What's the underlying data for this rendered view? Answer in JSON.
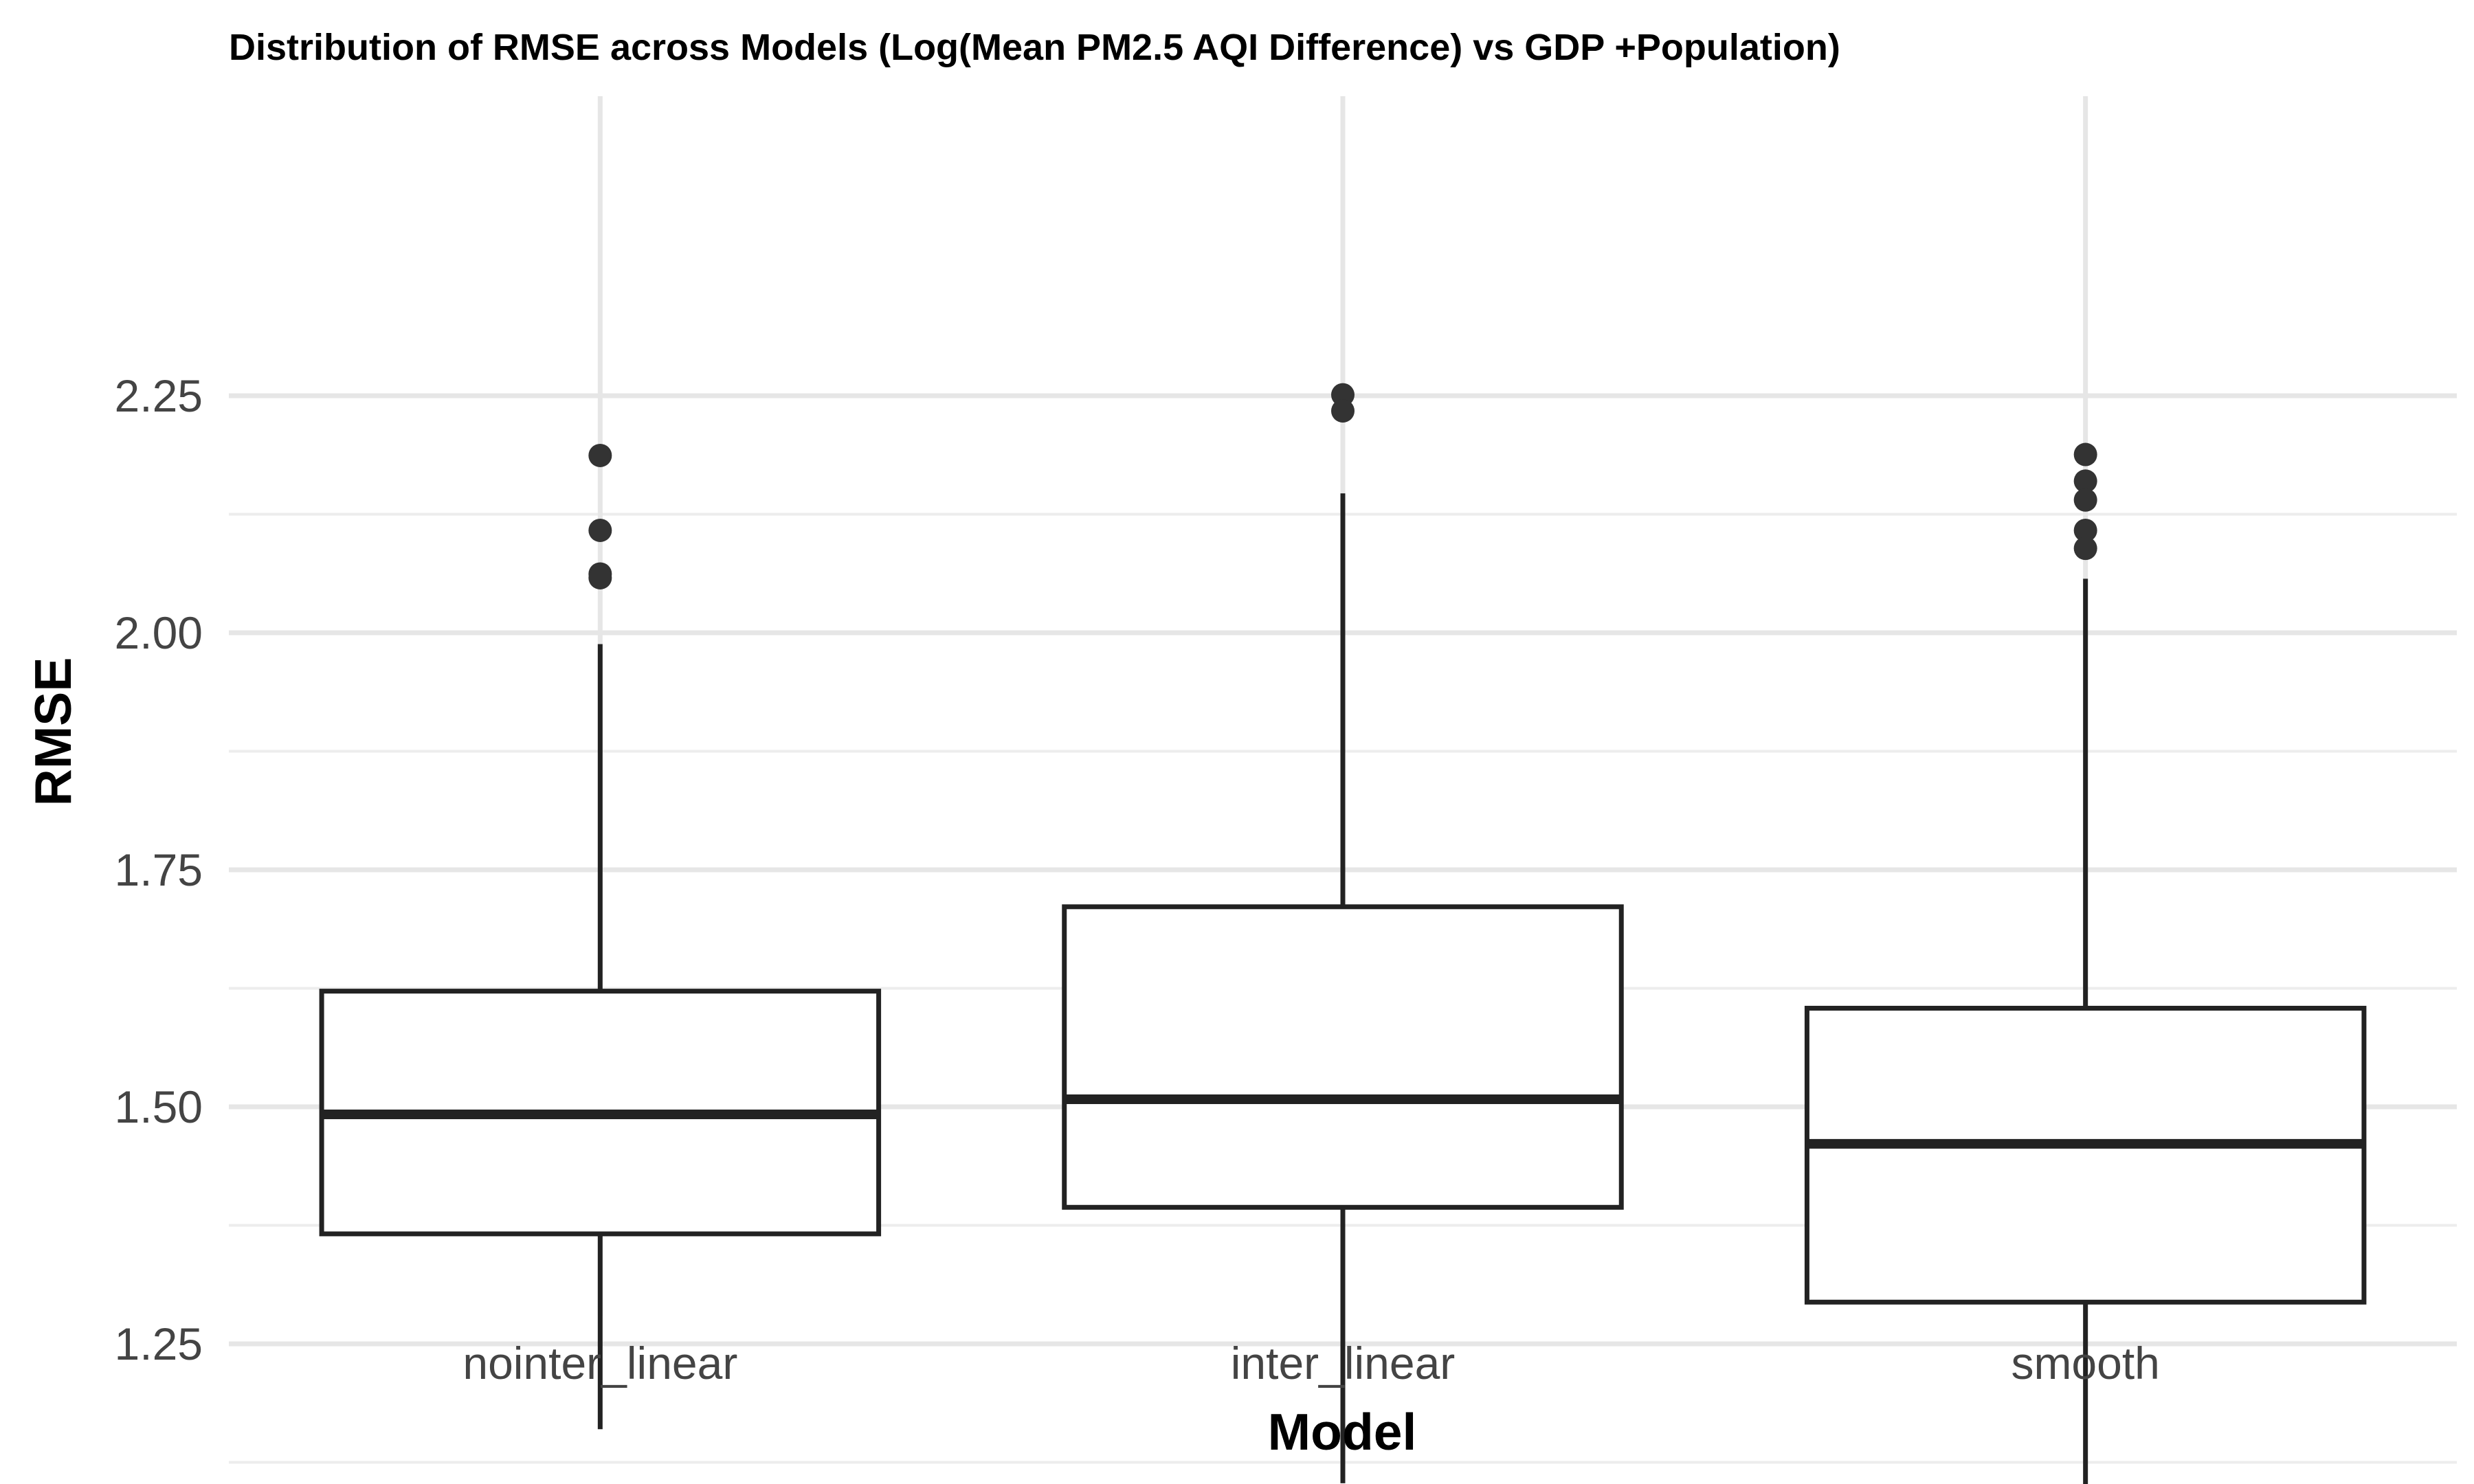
{
  "chart_data": {
    "type": "box",
    "title": "Distribution of RMSE across Models (Log(Mean PM2.5 AQI Difference) vs GDP +Population)",
    "xlabel": "Model",
    "ylabel": "RMSE",
    "categories": [
      "nointer_linear",
      "inter_linear",
      "smooth"
    ],
    "ylim": [
      1.09,
      2.31
    ],
    "yticks": [
      1.25,
      1.5,
      1.75,
      2.0,
      2.25
    ],
    "ytick_labels": [
      "1.25",
      "1.50",
      "1.75",
      "2.00",
      "2.25"
    ],
    "grid": true,
    "boxes": [
      {
        "name": "nointer_linear",
        "whisker_low": 1.16,
        "q1": 1.366,
        "median": 1.492,
        "q3": 1.622,
        "whisker_high": 1.988,
        "outliers": [
          2.187,
          2.108,
          2.062,
          2.058
        ]
      },
      {
        "name": "inter_linear",
        "whisker_low": 1.103,
        "q1": 1.394,
        "median": 1.508,
        "q3": 1.711,
        "whisker_high": 2.147,
        "outliers": [
          2.251,
          2.234
        ]
      },
      {
        "name": "smooth",
        "whisker_low": 1.085,
        "q1": 1.294,
        "median": 1.461,
        "q3": 1.604,
        "whisker_high": 2.057,
        "outliers": [
          2.188,
          2.16,
          2.14,
          2.108,
          2.089
        ]
      }
    ],
    "colors": {
      "box_line": "#222222",
      "point": "#333333",
      "grid_major": "#e6e6e6",
      "grid_minor": "#ededed"
    }
  }
}
